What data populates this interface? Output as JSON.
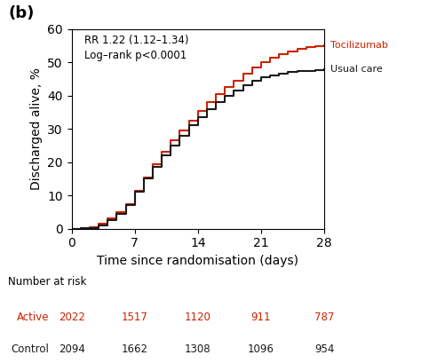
{
  "chart_data": {
    "type": "line",
    "title": "(b)",
    "y_label": "Discharged alive, %",
    "x_label": "Time since randomisation (days)",
    "annotations": [
      "RR 1.22 (1.12–1.34)",
      "Log–rank p<0.0001"
    ],
    "xlim": [
      0,
      28
    ],
    "ylim": [
      0,
      60
    ],
    "xticks": [
      0,
      7,
      14,
      21,
      28
    ],
    "yticks": [
      0,
      10,
      20,
      30,
      40,
      50,
      60
    ],
    "line_style": "steps",
    "x": [
      0,
      1,
      2,
      3,
      4,
      5,
      6,
      7,
      8,
      9,
      10,
      11,
      12,
      13,
      14,
      15,
      16,
      17,
      18,
      19,
      20,
      21,
      22,
      23,
      24,
      25,
      26,
      27,
      28
    ],
    "series": [
      {
        "name": "Tocilizumab",
        "color": "#cc2200",
        "values": [
          0,
          0.1,
          0.5,
          1.5,
          3.0,
          5.0,
          7.5,
          11.5,
          15.5,
          19.5,
          23.0,
          26.5,
          29.5,
          32.5,
          35.5,
          38.0,
          40.5,
          42.5,
          44.5,
          46.5,
          48.5,
          50.0,
          51.5,
          52.5,
          53.3,
          54.0,
          54.5,
          54.8,
          55.0
        ]
      },
      {
        "name": "Usual care",
        "color": "#1a1a1a",
        "values": [
          0,
          0.1,
          0.3,
          1.0,
          2.5,
          4.5,
          7.0,
          11.0,
          15.0,
          18.5,
          22.0,
          25.0,
          28.0,
          31.0,
          33.5,
          36.0,
          38.0,
          40.0,
          41.5,
          43.0,
          44.5,
          45.5,
          46.0,
          46.5,
          47.0,
          47.3,
          47.5,
          47.7,
          47.8
        ]
      }
    ],
    "risk_table": {
      "title": "Number at risk",
      "x": [
        0,
        7,
        14,
        21,
        28
      ],
      "rows": [
        {
          "name": "Active",
          "color": "#cc2200",
          "values": [
            2022,
            1517,
            1120,
            911,
            787
          ]
        },
        {
          "name": "Control",
          "color": "#1a1a1a",
          "values": [
            2094,
            1662,
            1308,
            1096,
            954
          ]
        }
      ]
    }
  }
}
